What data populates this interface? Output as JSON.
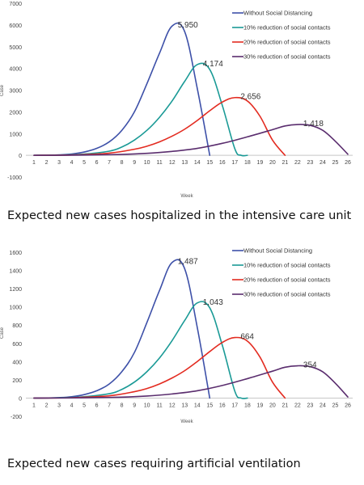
{
  "chart_data": [
    {
      "type": "line",
      "title": "",
      "xlabel": "Week",
      "ylabel": "Case",
      "x": [
        1,
        2,
        3,
        4,
        5,
        6,
        7,
        8,
        9,
        10,
        11,
        12,
        13,
        14,
        15,
        16,
        17,
        18,
        19,
        20,
        21,
        22,
        23,
        24,
        25,
        26
      ],
      "xlim": [
        1,
        26
      ],
      "ylim": [
        -1000,
        7000
      ],
      "yticks": [
        -1000,
        0,
        1000,
        2000,
        3000,
        4000,
        5000,
        6000,
        7000
      ],
      "grid": false,
      "legend_position": "top-right",
      "series": [
        {
          "name": "Without Social Distancing",
          "color": "#3d50a8",
          "points": [
            [
              1,
              0
            ],
            [
              2,
              5
            ],
            [
              3,
              20
            ],
            [
              4,
              60
            ],
            [
              5,
              150
            ],
            [
              6,
              320
            ],
            [
              7,
              620
            ],
            [
              8,
              1150
            ],
            [
              9,
              2000
            ],
            [
              10,
              3300
            ],
            [
              11,
              4700
            ],
            [
              12,
              5950
            ],
            [
              13,
              5700
            ],
            [
              14,
              3100
            ],
            [
              15,
              0
            ]
          ],
          "peak": {
            "x": 12,
            "y": 5950,
            "label": "5,950"
          }
        },
        {
          "name": "10% reduction of social contacts",
          "color": "#1a9a96",
          "points": [
            [
              1,
              0
            ],
            [
              3,
              10
            ],
            [
              5,
              60
            ],
            [
              7,
              190
            ],
            [
              8,
              380
            ],
            [
              9,
              700
            ],
            [
              10,
              1150
            ],
            [
              11,
              1750
            ],
            [
              12,
              2500
            ],
            [
              13,
              3400
            ],
            [
              14,
              4174
            ],
            [
              15,
              3950
            ],
            [
              16,
              2300
            ],
            [
              17,
              300
            ],
            [
              17.5,
              0
            ],
            [
              18,
              0
            ]
          ],
          "peak": {
            "x": 14,
            "y": 4174,
            "label": "4,174"
          }
        },
        {
          "name": "20% reduction of social contacts",
          "color": "#e32b20",
          "points": [
            [
              1,
              0
            ],
            [
              4,
              15
            ],
            [
              7,
              100
            ],
            [
              9,
              280
            ],
            [
              10,
              420
            ],
            [
              11,
              620
            ],
            [
              12,
              880
            ],
            [
              13,
              1200
            ],
            [
              14,
              1600
            ],
            [
              15,
              2050
            ],
            [
              16,
              2450
            ],
            [
              17,
              2656
            ],
            [
              18,
              2500
            ],
            [
              19,
              1800
            ],
            [
              20,
              700
            ],
            [
              21,
              0
            ]
          ],
          "peak": {
            "x": 17,
            "y": 2656,
            "label": "2,656"
          }
        },
        {
          "name": "30% reduction of social contacts",
          "color": "#5a2d6e",
          "points": [
            [
              1,
              0
            ],
            [
              5,
              10
            ],
            [
              8,
              40
            ],
            [
              10,
              90
            ],
            [
              12,
              180
            ],
            [
              14,
              320
            ],
            [
              16,
              550
            ],
            [
              18,
              850
            ],
            [
              20,
              1180
            ],
            [
              21,
              1350
            ],
            [
              22,
              1418
            ],
            [
              23,
              1380
            ],
            [
              24,
              1150
            ],
            [
              25,
              650
            ],
            [
              26,
              50
            ]
          ],
          "peak": {
            "x": 22,
            "y": 1418,
            "label": "1,418"
          }
        }
      ]
    },
    {
      "type": "line",
      "title": "",
      "xlabel": "Week",
      "ylabel": "Case",
      "x": [
        1,
        2,
        3,
        4,
        5,
        6,
        7,
        8,
        9,
        10,
        11,
        12,
        13,
        14,
        15,
        16,
        17,
        18,
        19,
        20,
        21,
        22,
        23,
        24,
        25,
        26
      ],
      "xlim": [
        1,
        26
      ],
      "ylim": [
        -200,
        1600
      ],
      "yticks": [
        -200,
        0,
        200,
        400,
        600,
        800,
        1000,
        1200,
        1400,
        1600
      ],
      "grid": false,
      "legend_position": "top-right",
      "series": [
        {
          "name": "Without Social Distancing",
          "color": "#3d50a8",
          "points": [
            [
              1,
              0
            ],
            [
              2,
              1
            ],
            [
              3,
              5
            ],
            [
              4,
              15
            ],
            [
              5,
              38
            ],
            [
              6,
              80
            ],
            [
              7,
              155
            ],
            [
              8,
              290
            ],
            [
              9,
              500
            ],
            [
              10,
              830
            ],
            [
              11,
              1180
            ],
            [
              12,
              1487
            ],
            [
              13,
              1420
            ],
            [
              14,
              780
            ],
            [
              15,
              0
            ]
          ],
          "peak": {
            "x": 12,
            "y": 1487,
            "label": "1,487"
          }
        },
        {
          "name": "10% reduction of social contacts",
          "color": "#1a9a96",
          "points": [
            [
              1,
              0
            ],
            [
              3,
              3
            ],
            [
              5,
              15
            ],
            [
              7,
              48
            ],
            [
              8,
              95
            ],
            [
              9,
              175
            ],
            [
              10,
              290
            ],
            [
              11,
              440
            ],
            [
              12,
              630
            ],
            [
              13,
              850
            ],
            [
              14,
              1043
            ],
            [
              15,
              990
            ],
            [
              16,
              580
            ],
            [
              17,
              75
            ],
            [
              17.5,
              0
            ],
            [
              18,
              0
            ]
          ],
          "peak": {
            "x": 14,
            "y": 1043,
            "label": "1,043"
          }
        },
        {
          "name": "20% reduction of social contacts",
          "color": "#e32b20",
          "points": [
            [
              1,
              0
            ],
            [
              4,
              4
            ],
            [
              7,
              25
            ],
            [
              9,
              70
            ],
            [
              10,
              105
            ],
            [
              11,
              155
            ],
            [
              12,
              220
            ],
            [
              13,
              300
            ],
            [
              14,
              400
            ],
            [
              15,
              510
            ],
            [
              16,
              610
            ],
            [
              17,
              664
            ],
            [
              18,
              625
            ],
            [
              19,
              450
            ],
            [
              20,
              175
            ],
            [
              21,
              0
            ]
          ],
          "peak": {
            "x": 17,
            "y": 664,
            "label": "664"
          }
        },
        {
          "name": "30% reduction of social contacts",
          "color": "#5a2d6e",
          "points": [
            [
              1,
              0
            ],
            [
              5,
              3
            ],
            [
              8,
              10
            ],
            [
              10,
              22
            ],
            [
              12,
              45
            ],
            [
              14,
              80
            ],
            [
              16,
              138
            ],
            [
              18,
              213
            ],
            [
              20,
              295
            ],
            [
              21,
              338
            ],
            [
              22,
              354
            ],
            [
              23,
              345
            ],
            [
              24,
              288
            ],
            [
              25,
              163
            ],
            [
              26,
              12
            ]
          ],
          "peak": {
            "x": 22,
            "y": 354,
            "label": "354"
          }
        }
      ]
    }
  ],
  "captions": [
    "Expected new cases hospitalized in the intensive care unit",
    "Expected new cases requiring artificial ventilation"
  ]
}
